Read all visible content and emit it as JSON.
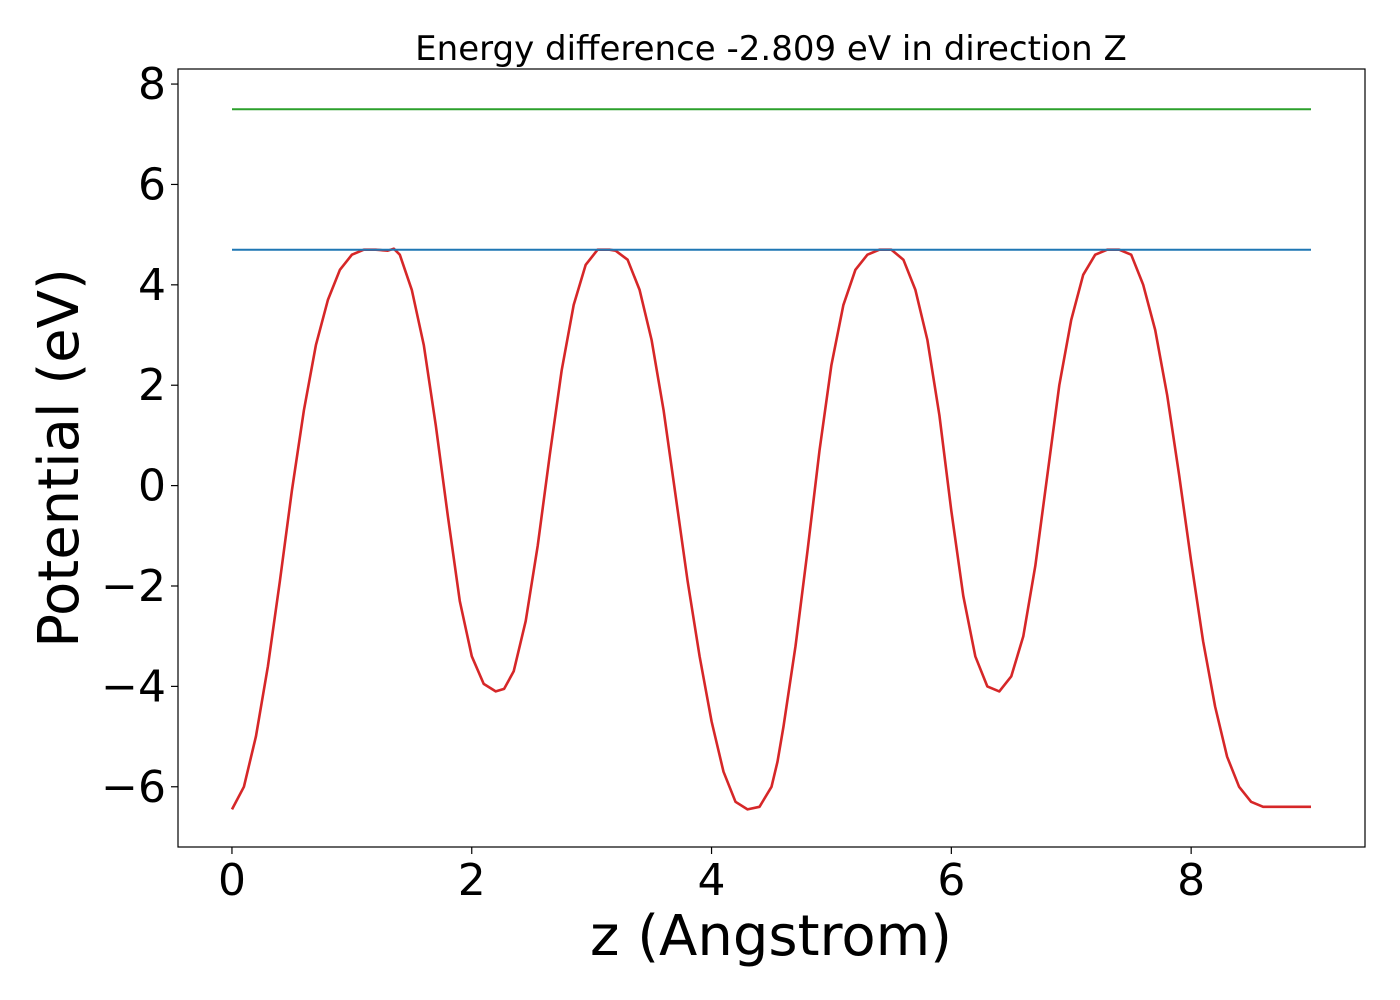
{
  "chart_data": {
    "type": "line",
    "title": "Energy difference -2.809 eV in direction Z",
    "xlabel": "z (Angstrom)",
    "ylabel": "Potential (eV)",
    "xlim": [
      -0.45,
      9.45
    ],
    "ylim": [
      -7.2,
      8.3
    ],
    "xticks": [
      0,
      2,
      4,
      6,
      8
    ],
    "xtick_labels": [
      "0",
      "2",
      "4",
      "6",
      "8"
    ],
    "yticks": [
      -6,
      -4,
      -2,
      0,
      2,
      4,
      6,
      8
    ],
    "ytick_labels": [
      "−6",
      "−4",
      "−2",
      "0",
      "2",
      "4",
      "6",
      "8"
    ],
    "grid": false,
    "series": [
      {
        "color": "#d62728",
        "x": [
          0,
          0.1,
          0.2,
          0.3,
          0.4,
          0.5,
          0.6,
          0.7,
          0.8,
          0.9,
          1.0,
          1.1,
          1.2,
          1.3,
          1.35,
          1.4,
          1.5,
          1.6,
          1.7,
          1.8,
          1.9,
          2.0,
          2.1,
          2.2,
          2.27,
          2.35,
          2.45,
          2.55,
          2.65,
          2.75,
          2.85,
          2.95,
          3.05,
          3.15,
          3.2,
          3.3,
          3.4,
          3.5,
          3.6,
          3.7,
          3.8,
          3.9,
          4.0,
          4.1,
          4.2,
          4.3,
          4.4,
          4.5,
          4.55,
          4.6,
          4.7,
          4.8,
          4.9,
          5.0,
          5.1,
          5.2,
          5.3,
          5.4,
          5.5,
          5.6,
          5.7,
          5.8,
          5.9,
          6.0,
          6.1,
          6.2,
          6.3,
          6.4,
          6.5,
          6.6,
          6.7,
          6.8,
          6.9,
          7.0,
          7.1,
          7.2,
          7.3,
          7.4,
          7.5,
          7.6,
          7.7,
          7.8,
          7.9,
          8.0,
          8.1,
          8.2,
          8.3,
          8.4,
          8.5,
          8.6,
          8.7,
          8.8,
          8.9,
          9.0
        ],
        "y": [
          -6.45,
          -6.0,
          -5.0,
          -3.6,
          -1.9,
          -0.1,
          1.5,
          2.8,
          3.7,
          4.3,
          4.6,
          4.7,
          4.7,
          4.68,
          4.72,
          4.6,
          3.9,
          2.8,
          1.2,
          -0.6,
          -2.3,
          -3.4,
          -3.95,
          -4.1,
          -4.05,
          -3.7,
          -2.7,
          -1.2,
          0.6,
          2.3,
          3.6,
          4.4,
          4.7,
          4.7,
          4.68,
          4.5,
          3.9,
          2.9,
          1.5,
          -0.2,
          -1.9,
          -3.4,
          -4.7,
          -5.7,
          -6.3,
          -6.45,
          -6.4,
          -6.0,
          -5.5,
          -4.8,
          -3.2,
          -1.3,
          0.7,
          2.4,
          3.6,
          4.3,
          4.6,
          4.7,
          4.7,
          4.5,
          3.9,
          2.9,
          1.4,
          -0.5,
          -2.2,
          -3.4,
          -4.0,
          -4.1,
          -3.8,
          -3.0,
          -1.6,
          0.2,
          2.0,
          3.3,
          4.2,
          4.6,
          4.7,
          4.7,
          4.6,
          4.0,
          3.1,
          1.8,
          0.2,
          -1.5,
          -3.1,
          -4.4,
          -5.4,
          -6.0,
          -6.3,
          -6.4,
          -6.4,
          -6.4,
          -6.4,
          -6.4
        ]
      },
      {
        "color": "#1f77b4",
        "x": [
          0,
          9
        ],
        "y": [
          4.7,
          4.7
        ]
      },
      {
        "color": "#2ca02c",
        "x": [
          0,
          9
        ],
        "y": [
          7.5,
          7.5
        ]
      }
    ]
  }
}
